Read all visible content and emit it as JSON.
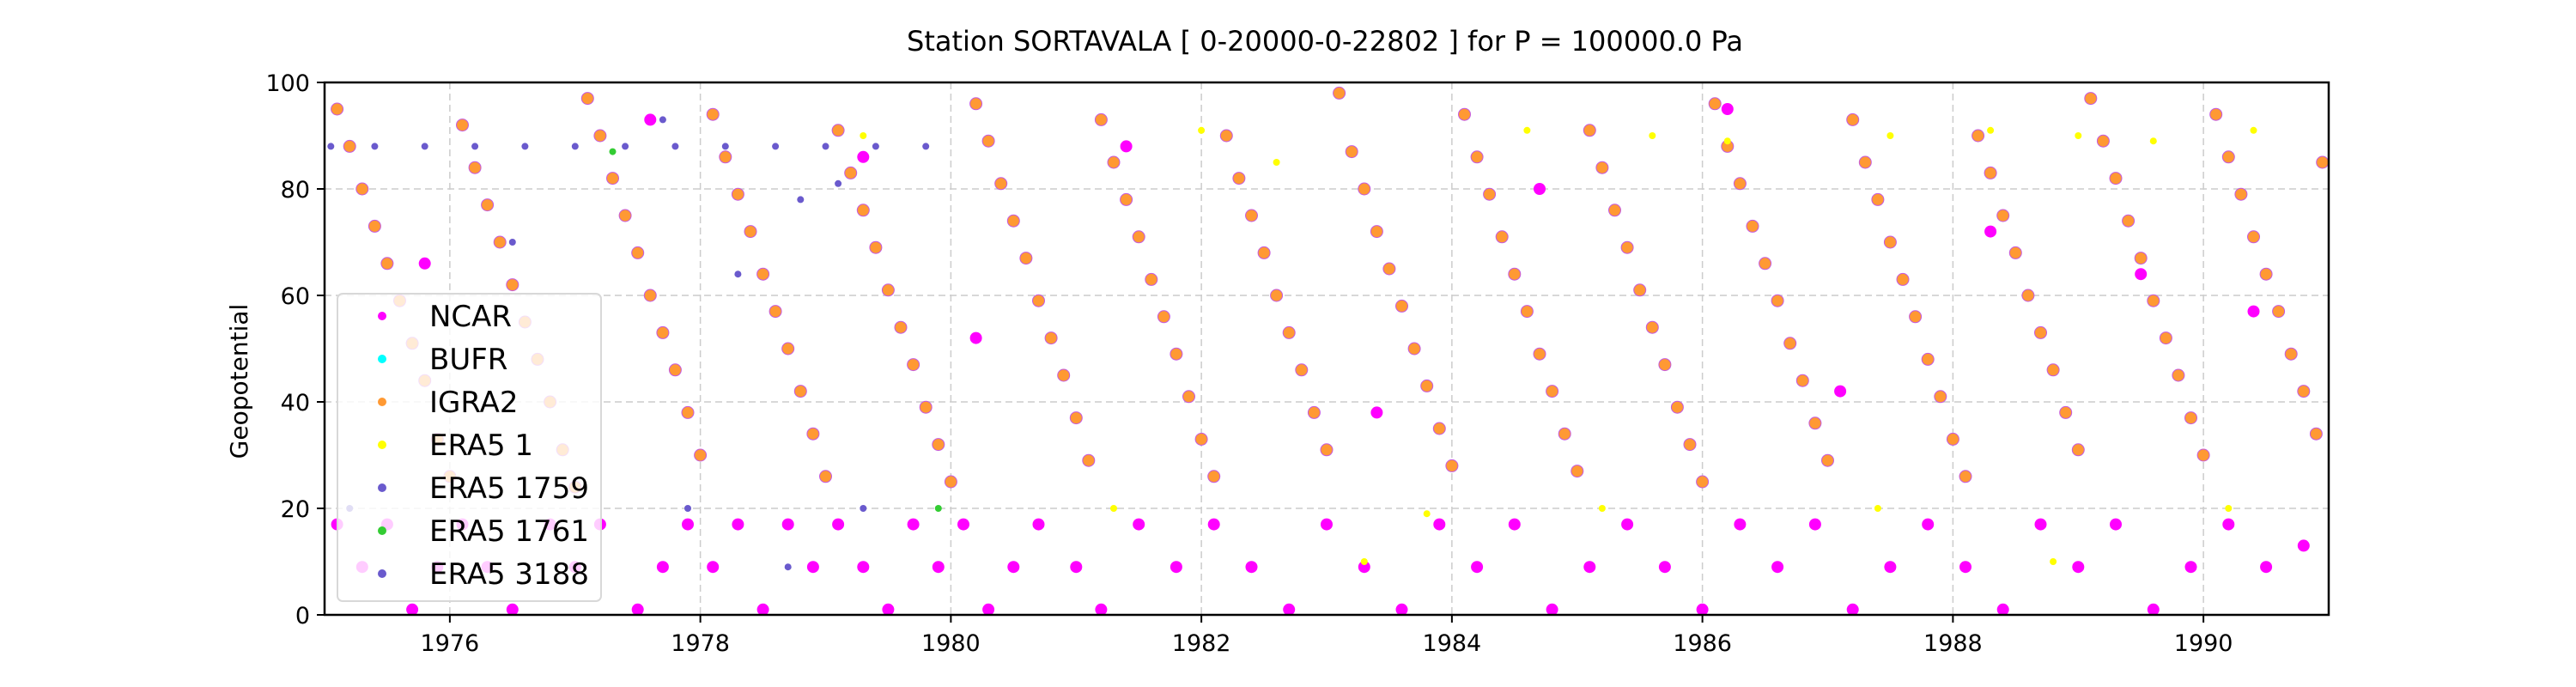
{
  "chart_data": {
    "type": "scatter",
    "title": "Station  SORTAVALA [ 0-20000-0-22802 ]  for P = 100000.0 Pa",
    "xlabel": "",
    "ylabel": "Geopotential",
    "xlim": [
      1975.0,
      1991.0
    ],
    "ylim": [
      0,
      100
    ],
    "x_ticks": [
      1976,
      1978,
      1980,
      1982,
      1984,
      1986,
      1988,
      1990
    ],
    "x_tick_labels": [
      "1976",
      "1978",
      "1980",
      "1982",
      "1984",
      "1986",
      "1988",
      "1990"
    ],
    "y_ticks": [
      0,
      20,
      40,
      60,
      80,
      100
    ],
    "y_tick_labels": [
      "0",
      "20",
      "40",
      "60",
      "80",
      "100"
    ],
    "grid": true,
    "legend_position": "center-left",
    "series": [
      {
        "name": "NCAR",
        "color": "#ff00ff",
        "marker": "circle",
        "points": [
          [
            1975.1,
            17
          ],
          [
            1975.3,
            9
          ],
          [
            1975.5,
            17
          ],
          [
            1975.7,
            1
          ],
          [
            1975.9,
            9
          ],
          [
            1976.1,
            17
          ],
          [
            1976.3,
            9
          ],
          [
            1976.5,
            1
          ],
          [
            1976.8,
            17
          ],
          [
            1977.0,
            9
          ],
          [
            1977.2,
            17
          ],
          [
            1977.5,
            1
          ],
          [
            1977.7,
            9
          ],
          [
            1977.9,
            17
          ],
          [
            1978.1,
            9
          ],
          [
            1978.3,
            17
          ],
          [
            1978.5,
            1
          ],
          [
            1978.7,
            17
          ],
          [
            1978.9,
            9
          ],
          [
            1979.1,
            17
          ],
          [
            1979.3,
            9
          ],
          [
            1979.5,
            1
          ],
          [
            1979.7,
            17
          ],
          [
            1979.9,
            9
          ],
          [
            1980.1,
            17
          ],
          [
            1980.3,
            1
          ],
          [
            1980.5,
            9
          ],
          [
            1980.7,
            17
          ],
          [
            1981.0,
            9
          ],
          [
            1981.2,
            1
          ],
          [
            1981.5,
            17
          ],
          [
            1981.8,
            9
          ],
          [
            1982.1,
            17
          ],
          [
            1982.4,
            9
          ],
          [
            1982.7,
            1
          ],
          [
            1983.0,
            17
          ],
          [
            1983.3,
            9
          ],
          [
            1983.6,
            1
          ],
          [
            1983.9,
            17
          ],
          [
            1984.2,
            9
          ],
          [
            1984.5,
            17
          ],
          [
            1984.8,
            1
          ],
          [
            1985.1,
            9
          ],
          [
            1985.4,
            17
          ],
          [
            1985.7,
            9
          ],
          [
            1986.0,
            1
          ],
          [
            1986.3,
            17
          ],
          [
            1986.6,
            9
          ],
          [
            1986.9,
            17
          ],
          [
            1987.2,
            1
          ],
          [
            1987.5,
            9
          ],
          [
            1987.8,
            17
          ],
          [
            1988.1,
            9
          ],
          [
            1988.4,
            1
          ],
          [
            1988.7,
            17
          ],
          [
            1989.0,
            9
          ],
          [
            1989.3,
            17
          ],
          [
            1989.6,
            1
          ],
          [
            1989.9,
            9
          ],
          [
            1990.2,
            17
          ],
          [
            1990.5,
            9
          ],
          [
            1990.8,
            13
          ],
          [
            1977.6,
            93
          ],
          [
            1975.8,
            66
          ],
          [
            1979.3,
            86
          ],
          [
            1981.4,
            88
          ],
          [
            1984.7,
            80
          ],
          [
            1986.2,
            95
          ],
          [
            1988.3,
            72
          ],
          [
            1989.5,
            64
          ],
          [
            1990.4,
            57
          ],
          [
            1980.2,
            52
          ],
          [
            1983.4,
            38
          ],
          [
            1987.1,
            42
          ]
        ]
      },
      {
        "name": "BUFR",
        "color": "#00ffff",
        "marker": "circle",
        "points": []
      },
      {
        "name": "IGRA2",
        "color": "#ff9933",
        "marker": "circle",
        "points": [
          [
            1975.1,
            95
          ],
          [
            1975.2,
            88
          ],
          [
            1975.3,
            80
          ],
          [
            1975.4,
            73
          ],
          [
            1975.5,
            66
          ],
          [
            1975.6,
            59
          ],
          [
            1975.7,
            51
          ],
          [
            1975.8,
            44
          ],
          [
            1975.9,
            33
          ],
          [
            1976.0,
            26
          ],
          [
            1976.1,
            92
          ],
          [
            1976.2,
            84
          ],
          [
            1976.3,
            77
          ],
          [
            1976.4,
            70
          ],
          [
            1976.5,
            62
          ],
          [
            1976.6,
            55
          ],
          [
            1976.7,
            48
          ],
          [
            1976.8,
            40
          ],
          [
            1976.9,
            31
          ],
          [
            1977.0,
            24
          ],
          [
            1977.1,
            97
          ],
          [
            1977.2,
            90
          ],
          [
            1977.3,
            82
          ],
          [
            1977.4,
            75
          ],
          [
            1977.5,
            68
          ],
          [
            1977.6,
            60
          ],
          [
            1977.7,
            53
          ],
          [
            1977.8,
            46
          ],
          [
            1977.9,
            38
          ],
          [
            1978.0,
            30
          ],
          [
            1978.1,
            94
          ],
          [
            1978.2,
            86
          ],
          [
            1978.3,
            79
          ],
          [
            1978.4,
            72
          ],
          [
            1978.5,
            64
          ],
          [
            1978.6,
            57
          ],
          [
            1978.7,
            50
          ],
          [
            1978.8,
            42
          ],
          [
            1978.9,
            34
          ],
          [
            1979.0,
            26
          ],
          [
            1979.1,
            91
          ],
          [
            1979.2,
            83
          ],
          [
            1979.3,
            76
          ],
          [
            1979.4,
            69
          ],
          [
            1979.5,
            61
          ],
          [
            1979.6,
            54
          ],
          [
            1979.7,
            47
          ],
          [
            1979.8,
            39
          ],
          [
            1979.9,
            32
          ],
          [
            1980.0,
            25
          ],
          [
            1980.2,
            96
          ],
          [
            1980.3,
            89
          ],
          [
            1980.4,
            81
          ],
          [
            1980.5,
            74
          ],
          [
            1980.6,
            67
          ],
          [
            1980.7,
            59
          ],
          [
            1980.8,
            52
          ],
          [
            1980.9,
            45
          ],
          [
            1981.0,
            37
          ],
          [
            1981.1,
            29
          ],
          [
            1981.2,
            93
          ],
          [
            1981.3,
            85
          ],
          [
            1981.4,
            78
          ],
          [
            1981.5,
            71
          ],
          [
            1981.6,
            63
          ],
          [
            1981.7,
            56
          ],
          [
            1981.8,
            49
          ],
          [
            1981.9,
            41
          ],
          [
            1982.0,
            33
          ],
          [
            1982.1,
            26
          ],
          [
            1982.2,
            90
          ],
          [
            1982.3,
            82
          ],
          [
            1982.4,
            75
          ],
          [
            1982.5,
            68
          ],
          [
            1982.6,
            60
          ],
          [
            1982.7,
            53
          ],
          [
            1982.8,
            46
          ],
          [
            1982.9,
            38
          ],
          [
            1983.0,
            31
          ],
          [
            1983.1,
            98
          ],
          [
            1983.2,
            87
          ],
          [
            1983.3,
            80
          ],
          [
            1983.4,
            72
          ],
          [
            1983.5,
            65
          ],
          [
            1983.6,
            58
          ],
          [
            1983.7,
            50
          ],
          [
            1983.8,
            43
          ],
          [
            1983.9,
            35
          ],
          [
            1984.0,
            28
          ],
          [
            1984.1,
            94
          ],
          [
            1984.2,
            86
          ],
          [
            1984.3,
            79
          ],
          [
            1984.4,
            71
          ],
          [
            1984.5,
            64
          ],
          [
            1984.6,
            57
          ],
          [
            1984.7,
            49
          ],
          [
            1984.8,
            42
          ],
          [
            1984.9,
            34
          ],
          [
            1985.0,
            27
          ],
          [
            1985.1,
            91
          ],
          [
            1985.2,
            84
          ],
          [
            1985.3,
            76
          ],
          [
            1985.4,
            69
          ],
          [
            1985.5,
            61
          ],
          [
            1985.6,
            54
          ],
          [
            1985.7,
            47
          ],
          [
            1985.8,
            39
          ],
          [
            1985.9,
            32
          ],
          [
            1986.0,
            25
          ],
          [
            1986.1,
            96
          ],
          [
            1986.2,
            88
          ],
          [
            1986.3,
            81
          ],
          [
            1986.4,
            73
          ],
          [
            1986.5,
            66
          ],
          [
            1986.6,
            59
          ],
          [
            1986.7,
            51
          ],
          [
            1986.8,
            44
          ],
          [
            1986.9,
            36
          ],
          [
            1987.0,
            29
          ],
          [
            1987.2,
            93
          ],
          [
            1987.3,
            85
          ],
          [
            1987.4,
            78
          ],
          [
            1987.5,
            70
          ],
          [
            1987.6,
            63
          ],
          [
            1987.7,
            56
          ],
          [
            1987.8,
            48
          ],
          [
            1987.9,
            41
          ],
          [
            1988.0,
            33
          ],
          [
            1988.1,
            26
          ],
          [
            1988.2,
            90
          ],
          [
            1988.3,
            83
          ],
          [
            1988.4,
            75
          ],
          [
            1988.5,
            68
          ],
          [
            1988.6,
            60
          ],
          [
            1988.7,
            53
          ],
          [
            1988.8,
            46
          ],
          [
            1988.9,
            38
          ],
          [
            1989.0,
            31
          ],
          [
            1989.1,
            97
          ],
          [
            1989.2,
            89
          ],
          [
            1989.3,
            82
          ],
          [
            1989.4,
            74
          ],
          [
            1989.5,
            67
          ],
          [
            1989.6,
            59
          ],
          [
            1989.7,
            52
          ],
          [
            1989.8,
            45
          ],
          [
            1989.9,
            37
          ],
          [
            1990.0,
            30
          ],
          [
            1990.1,
            94
          ],
          [
            1990.2,
            86
          ],
          [
            1990.3,
            79
          ],
          [
            1990.4,
            71
          ],
          [
            1990.5,
            64
          ],
          [
            1990.6,
            57
          ],
          [
            1990.7,
            49
          ],
          [
            1990.8,
            42
          ],
          [
            1990.9,
            34
          ],
          [
            1990.95,
            85
          ]
        ]
      },
      {
        "name": "ERA5 1",
        "color": "#ffff00",
        "marker": "circle",
        "points": [
          [
            1979.3,
            90
          ],
          [
            1982.0,
            91
          ],
          [
            1982.6,
            85
          ],
          [
            1983.3,
            10
          ],
          [
            1984.6,
            91
          ],
          [
            1985.6,
            90
          ],
          [
            1986.2,
            89
          ],
          [
            1987.5,
            90
          ],
          [
            1988.3,
            91
          ],
          [
            1989.0,
            90
          ],
          [
            1989.6,
            89
          ],
          [
            1990.4,
            91
          ],
          [
            1981.3,
            20
          ],
          [
            1983.8,
            19
          ],
          [
            1985.2,
            20
          ],
          [
            1987.4,
            20
          ],
          [
            1988.8,
            10
          ],
          [
            1990.2,
            20
          ]
        ]
      },
      {
        "name": "ERA5 1759",
        "color": "#6a5acd",
        "marker": "circle",
        "points": [
          [
            1975.05,
            88
          ],
          [
            1975.4,
            88
          ],
          [
            1975.8,
            88
          ],
          [
            1976.2,
            88
          ],
          [
            1976.6,
            88
          ],
          [
            1977.0,
            88
          ],
          [
            1977.4,
            88
          ],
          [
            1977.8,
            88
          ],
          [
            1978.2,
            88
          ],
          [
            1978.6,
            88
          ],
          [
            1979.0,
            88
          ],
          [
            1979.4,
            88
          ],
          [
            1979.8,
            88
          ],
          [
            1977.7,
            93
          ],
          [
            1978.8,
            78
          ],
          [
            1979.3,
            20
          ],
          [
            1977.9,
            20
          ],
          [
            1978.7,
            9
          ],
          [
            1975.2,
            20
          ]
        ]
      },
      {
        "name": "ERA5 1761",
        "color": "#33cc33",
        "marker": "circle",
        "points": [
          [
            1977.3,
            87
          ],
          [
            1979.9,
            20
          ]
        ]
      },
      {
        "name": "ERA5 3188",
        "color": "#6a5acd",
        "marker": "circle",
        "points": [
          [
            1976.5,
            70
          ],
          [
            1978.3,
            64
          ],
          [
            1979.1,
            81
          ]
        ]
      }
    ]
  }
}
